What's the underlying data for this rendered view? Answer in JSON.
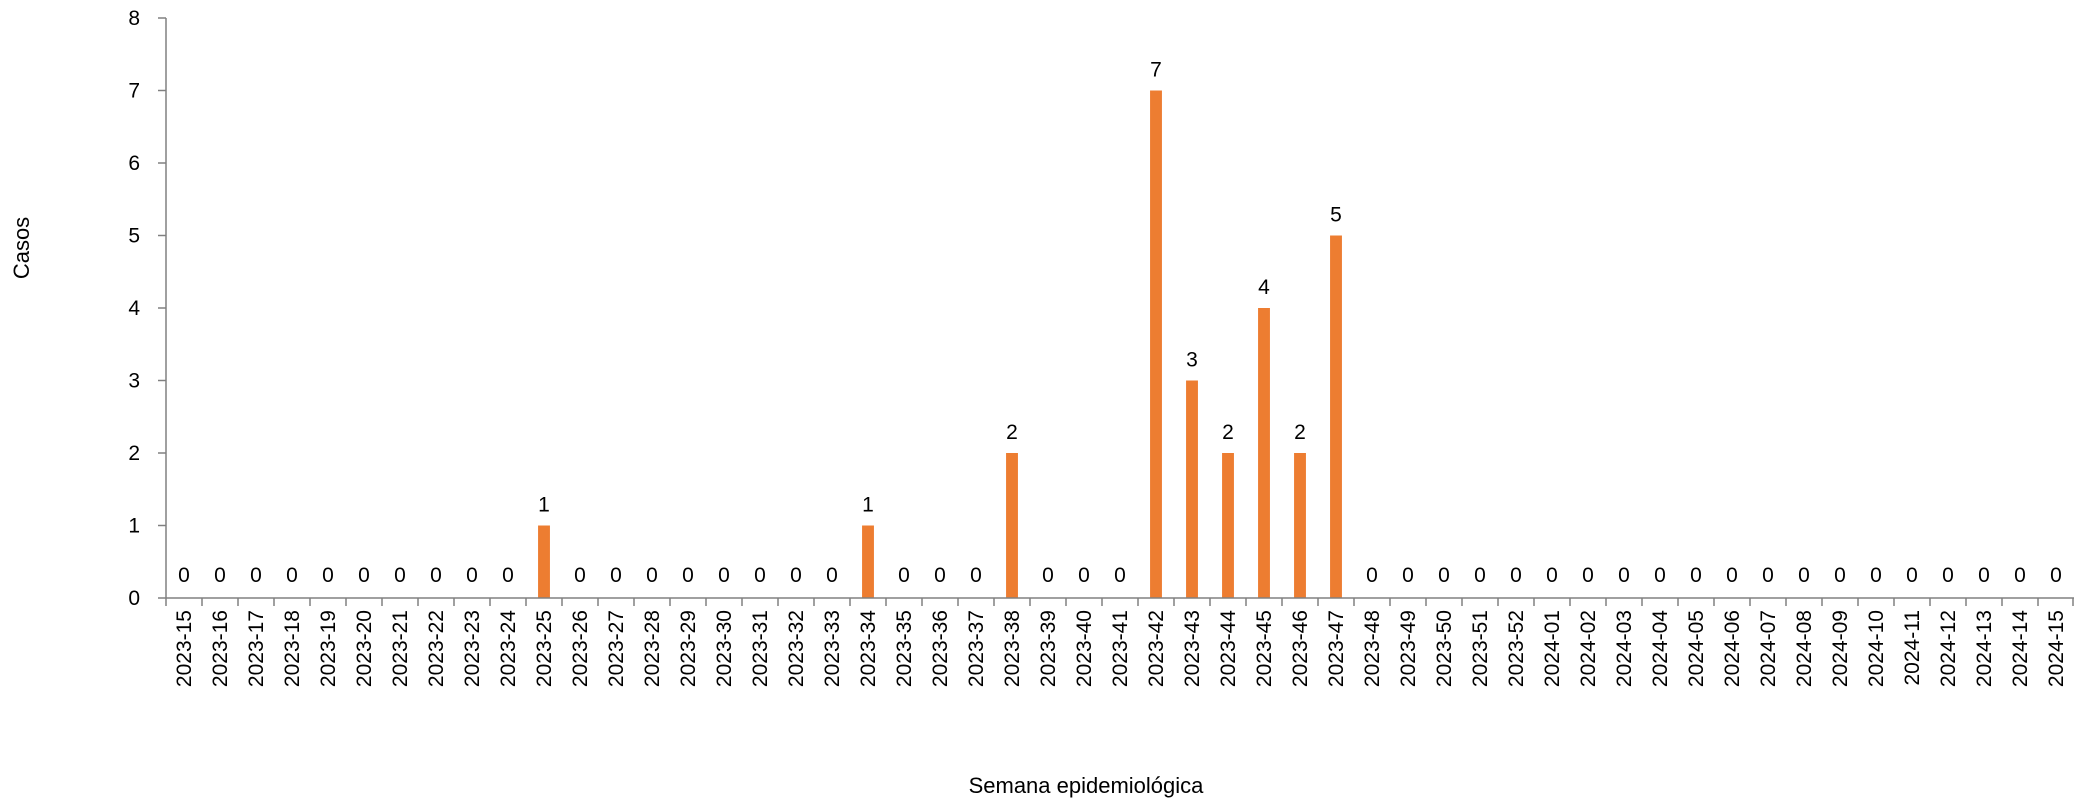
{
  "chart_data": {
    "type": "bar",
    "title": "",
    "xlabel": "Semana epidemiológica",
    "ylabel": "Casos",
    "ylim": [
      0,
      8
    ],
    "yticks": [
      "0",
      "1",
      "2",
      "3",
      "4",
      "5",
      "6",
      "7",
      "8"
    ],
    "grid": false,
    "legend": "none",
    "bar_color": "#ED7D31",
    "categories": [
      "2023-15",
      "2023-16",
      "2023-17",
      "2023-18",
      "2023-19",
      "2023-20",
      "2023-21",
      "2023-22",
      "2023-23",
      "2023-24",
      "2023-25",
      "2023-26",
      "2023-27",
      "2023-28",
      "2023-29",
      "2023-30",
      "2023-31",
      "2023-32",
      "2023-33",
      "2023-34",
      "2023-35",
      "2023-36",
      "2023-37",
      "2023-38",
      "2023-39",
      "2023-40",
      "2023-41",
      "2023-42",
      "2023-43",
      "2023-44",
      "2023-45",
      "2023-46",
      "2023-47",
      "2023-48",
      "2023-49",
      "2023-50",
      "2023-51",
      "2023-52",
      "2024-01",
      "2024-02",
      "2024-03",
      "2024-04",
      "2024-05",
      "2024-06",
      "2024-07",
      "2024-08",
      "2024-09",
      "2024-10",
      "2024-11",
      "2024-12",
      "2024-13",
      "2024-14",
      "2024-15"
    ],
    "values": [
      0,
      0,
      0,
      0,
      0,
      0,
      0,
      0,
      0,
      0,
      1,
      0,
      0,
      0,
      0,
      0,
      0,
      0,
      0,
      1,
      0,
      0,
      0,
      2,
      0,
      0,
      0,
      7,
      3,
      2,
      4,
      2,
      5,
      0,
      0,
      0,
      0,
      0,
      0,
      0,
      0,
      0,
      0,
      0,
      0,
      0,
      0,
      0,
      0,
      0,
      0,
      0,
      0
    ]
  }
}
